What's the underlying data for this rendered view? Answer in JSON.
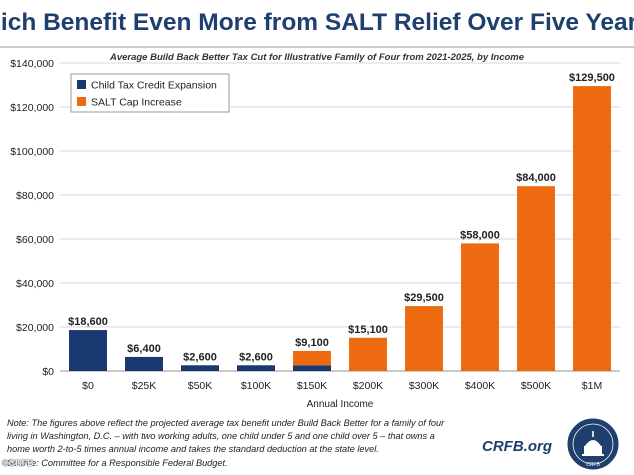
{
  "title": "Rich Benefit Even More from SALT Relief Over Five Years",
  "subtitle": "Average Build Back Better Tax Cut for Illustrative Family of Four from 2021-2025, by Income",
  "note_lines": [
    "Note: The figures above reflect the projected average tax benefit under Build Back Better for a family of four",
    "living in Washington, D.C. – with two working adults, one child under 5 and one child over 5 – that owns a",
    "home worth 2-to-5 times annual income and takes the standard deduction at the state level.",
    "Source: Committee for a Responsible Federal Budget."
  ],
  "website": "CRFB.org",
  "corner_credit": "©CRFB",
  "seal_text": "CRFB",
  "colors": {
    "child_tax_credit": "#17396f",
    "salt_cap": "#ee6a10",
    "title": "#1f3f6e",
    "grid": "#d9d9d9"
  },
  "chart_data": {
    "type": "bar",
    "stacked": true,
    "xlabel": "Annual Income",
    "ylabel": "",
    "categories": [
      "$0",
      "$25K",
      "$50K",
      "$100K",
      "$150K",
      "$200K",
      "$300K",
      "$400K",
      "$500K",
      "$1M"
    ],
    "series": [
      {
        "name": "Child Tax Credit Expansion",
        "color": "#17396f",
        "values": [
          18600,
          6400,
          2600,
          2600,
          2600,
          0,
          0,
          0,
          0,
          0
        ]
      },
      {
        "name": "SALT Cap Increase",
        "color": "#ee6a10",
        "values": [
          0,
          0,
          0,
          0,
          6500,
          15100,
          29500,
          58000,
          84000,
          129500
        ]
      }
    ],
    "total_labels": [
      "$18,600",
      "$6,400",
      "$2,600",
      "$2,600",
      "$9,100",
      "$15,100",
      "$29,500",
      "$58,000",
      "$84,000",
      "$129,500"
    ],
    "ylim": [
      0,
      140000
    ],
    "yticks": [
      0,
      20000,
      40000,
      60000,
      80000,
      100000,
      120000,
      140000
    ],
    "ytick_labels": [
      "$0",
      "$20,000",
      "$40,000",
      "$60,000",
      "$80,000",
      "$100,000",
      "$120,000",
      "$140,000"
    ],
    "grid": true,
    "legend_position": "top-left"
  }
}
